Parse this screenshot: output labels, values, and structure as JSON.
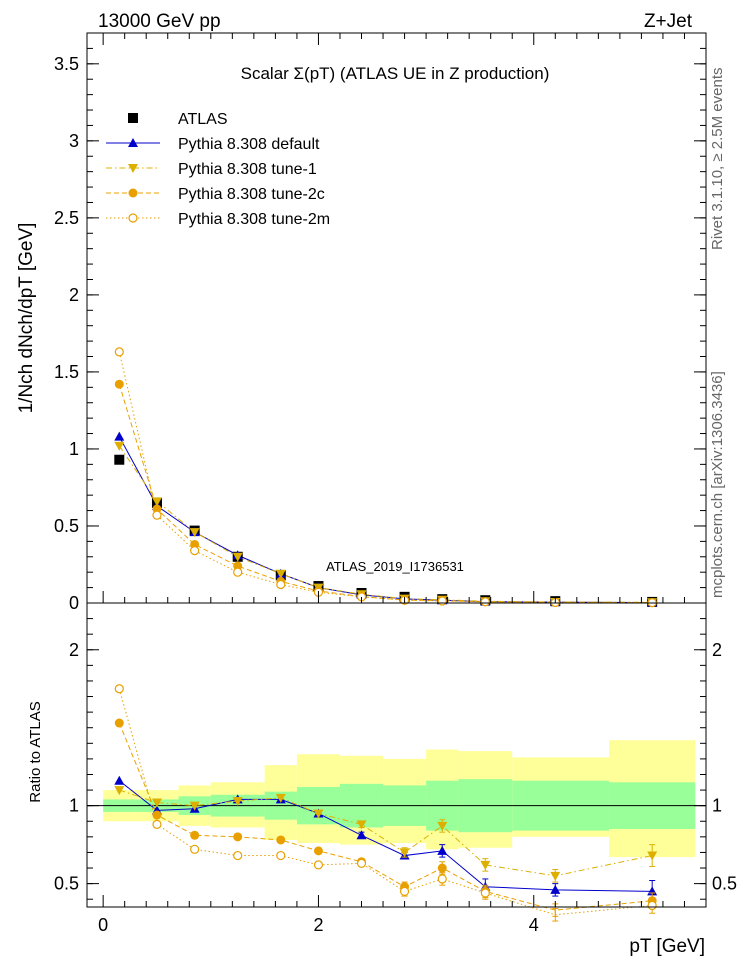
{
  "header": {
    "left": "13000 GeV pp",
    "right": "Z+Jet"
  },
  "side_labels": {
    "top": "Rivet 3.1.10, ≥ 2.5M events",
    "bottom": "mcplots.cern.ch [arXiv:1306.3436]"
  },
  "chart_data": [
    {
      "type": "line",
      "panel": "main",
      "title": "Scalar Σ(pT) (ATLAS UE in Z production)",
      "xlabel": "pT [GeV]",
      "ylabel": "1/Nch dNch/dpT [GeV]",
      "xlim": [
        -0.15,
        5.6
      ],
      "ylim": [
        0,
        3.7
      ],
      "yticks": [
        "0",
        "0.5",
        "1",
        "1.5",
        "2",
        "2.5",
        "3",
        "3.5"
      ],
      "xticks": [
        "0",
        "2",
        "4"
      ],
      "legend_position": "top-left",
      "watermark": "ATLAS_2019_I1736531",
      "x": [
        0.15,
        0.5,
        0.85,
        1.25,
        1.65,
        2.0,
        2.4,
        2.8,
        3.15,
        3.55,
        4.2,
        5.1
      ],
      "x_edges": [
        0.0,
        0.3,
        0.7,
        1.0,
        1.5,
        1.8,
        2.2,
        2.6,
        3.0,
        3.3,
        3.8,
        4.7,
        5.5
      ],
      "series": [
        {
          "name": "ATLAS",
          "color": "#000000",
          "marker": "square",
          "values": [
            0.93,
            0.65,
            0.47,
            0.3,
            0.18,
            0.11,
            0.065,
            0.04,
            0.025,
            0.018,
            0.012,
            0.007
          ]
        },
        {
          "name": "Pythia 8.308 default",
          "color": "#0000cc",
          "marker": "triangle-up",
          "line": "solid",
          "values": [
            1.08,
            0.63,
            0.46,
            0.31,
            0.19,
            0.1,
            0.053,
            0.027,
            0.018,
            0.009,
            0.0055,
            0.003
          ]
        },
        {
          "name": "Pythia 8.308 tune-1",
          "color": "#ddb000",
          "marker": "triangle-down",
          "line": "dashdot",
          "values": [
            1.02,
            0.66,
            0.46,
            0.3,
            0.19,
            0.1,
            0.057,
            0.028,
            0.021,
            0.011,
            0.0065,
            0.0048
          ]
        },
        {
          "name": "Pythia 8.308 tune-2c",
          "color": "#e8a000",
          "marker": "circle",
          "line": "dashed",
          "values": [
            1.42,
            0.61,
            0.38,
            0.24,
            0.14,
            0.078,
            0.042,
            0.019,
            0.015,
            0.0081,
            0.004,
            0.0027
          ]
        },
        {
          "name": "Pythia 8.308 tune-2m",
          "color": "#e8a000",
          "marker": "circle-open",
          "line": "dotted",
          "values": [
            1.63,
            0.57,
            0.34,
            0.2,
            0.12,
            0.07,
            0.04,
            0.018,
            0.013,
            0.008,
            0.0036,
            0.0025
          ]
        }
      ]
    },
    {
      "type": "line",
      "panel": "ratio",
      "ylabel": "Ratio to ATLAS",
      "xlabel": "pT [GeV]",
      "xlim": [
        -0.15,
        5.6
      ],
      "ylim": [
        0.35,
        2.3
      ],
      "yticks": [
        "0.5",
        "1",
        "2"
      ],
      "xticks": [
        "0",
        "2",
        "4"
      ],
      "reference": 1,
      "x": [
        0.15,
        0.5,
        0.85,
        1.25,
        1.65,
        2.0,
        2.4,
        2.8,
        3.15,
        3.55,
        4.2,
        5.1
      ],
      "x_edges": [
        0.0,
        0.3,
        0.7,
        1.0,
        1.5,
        1.8,
        2.2,
        2.6,
        3.0,
        3.3,
        3.8,
        4.7,
        5.5
      ],
      "band_stat": {
        "color": "#99ff99",
        "lo": [
          0.96,
          0.96,
          0.94,
          0.93,
          0.91,
          0.88,
          0.86,
          0.87,
          0.84,
          0.83,
          0.84,
          0.85
        ],
        "hi": [
          1.04,
          1.04,
          1.06,
          1.07,
          1.09,
          1.12,
          1.14,
          1.13,
          1.16,
          1.17,
          1.16,
          1.15
        ]
      },
      "band_total": {
        "color": "#ffff99",
        "lo": [
          0.9,
          0.9,
          0.87,
          0.86,
          0.78,
          0.76,
          0.75,
          0.76,
          0.72,
          0.73,
          0.8,
          0.67
        ],
        "hi": [
          1.1,
          1.1,
          1.13,
          1.15,
          1.26,
          1.33,
          1.32,
          1.3,
          1.36,
          1.35,
          1.31,
          1.42
        ]
      },
      "series": [
        {
          "name": "Pythia 8.308 default",
          "color": "#0000cc",
          "marker": "triangle-up",
          "line": "solid",
          "values": [
            1.16,
            0.97,
            0.98,
            1.04,
            1.04,
            0.95,
            0.81,
            0.68,
            0.71,
            0.48,
            0.46,
            0.45
          ],
          "errors": [
            0.01,
            0.01,
            0.01,
            0.01,
            0.01,
            0.01,
            0.02,
            0.02,
            0.04,
            0.05,
            0.04,
            0.07
          ]
        },
        {
          "name": "Pythia 8.308 tune-1",
          "color": "#ddb000",
          "marker": "triangle-down",
          "line": "dashdot",
          "values": [
            1.1,
            1.02,
            1.0,
            1.03,
            1.05,
            0.95,
            0.88,
            0.7,
            0.87,
            0.62,
            0.55,
            0.68
          ],
          "errors": [
            0.01,
            0.01,
            0.01,
            0.01,
            0.01,
            0.01,
            0.02,
            0.03,
            0.04,
            0.04,
            0.04,
            0.07
          ]
        },
        {
          "name": "Pythia 8.308 tune-2c",
          "color": "#e8a000",
          "marker": "circle",
          "line": "dashed",
          "values": [
            1.53,
            0.94,
            0.81,
            0.8,
            0.78,
            0.71,
            0.64,
            0.48,
            0.6,
            0.45,
            0.33,
            0.39
          ],
          "errors": [
            0.01,
            0.01,
            0.01,
            0.01,
            0.01,
            0.01,
            0.02,
            0.03,
            0.04,
            0.04,
            0.04,
            0.05
          ]
        },
        {
          "name": "Pythia 8.308 tune-2m",
          "color": "#e8a000",
          "marker": "circle-open",
          "line": "dotted",
          "values": [
            1.75,
            0.88,
            0.72,
            0.68,
            0.68,
            0.62,
            0.63,
            0.45,
            0.53,
            0.44,
            0.3,
            0.36
          ],
          "errors": [
            0.01,
            0.01,
            0.01,
            0.01,
            0.01,
            0.01,
            0.02,
            0.03,
            0.04,
            0.04,
            0.04,
            0.05
          ]
        }
      ]
    }
  ]
}
